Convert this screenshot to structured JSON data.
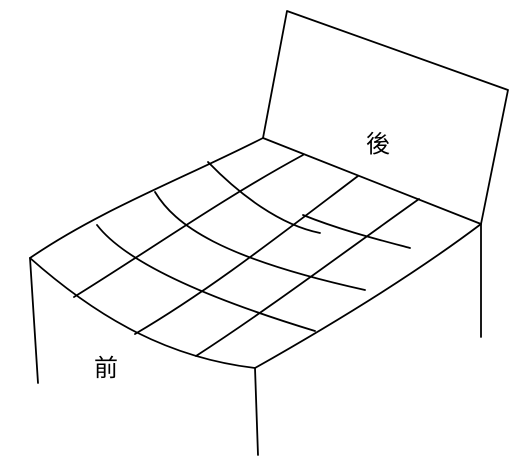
{
  "labels": {
    "back": "後",
    "front": "前"
  },
  "colors": {
    "line": "#000000",
    "background": "#ffffff"
  }
}
